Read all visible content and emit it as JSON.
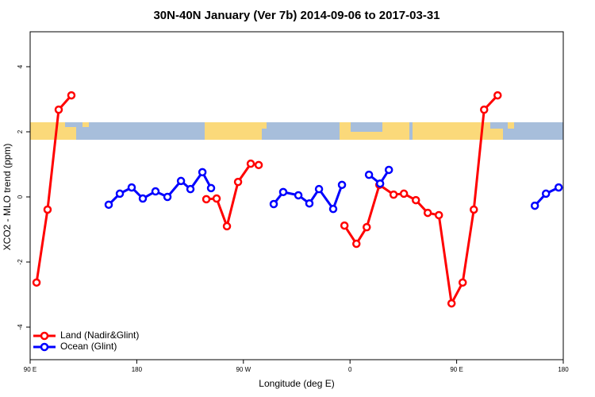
{
  "chart_data": {
    "type": "line",
    "title": "30N-40N January (Ver 7b)   2014-09-06 to 2017-03-31",
    "xlabel": "Longitude (deg E)",
    "ylabel": "XCO2 - MLO trend (ppm)",
    "xlim": [
      90,
      540
    ],
    "ylim": [
      -5,
      5
    ],
    "xticks": [
      {
        "value": 90,
        "label": "90 E"
      },
      {
        "value": 180,
        "label": "180"
      },
      {
        "value": 270,
        "label": "90 W"
      },
      {
        "value": 360,
        "label": "0"
      },
      {
        "value": 450,
        "label": "90 E"
      },
      {
        "value": 540,
        "label": "180"
      }
    ],
    "yticks": [
      -4,
      -2,
      0,
      2,
      4
    ],
    "legend": "lower left",
    "series": [
      {
        "name": "Land (Nadir&Glint)",
        "color": "#ff0000",
        "x": [
          95.4,
          104.7,
          114.1,
          124.8,
          null,
          238.7,
          247.4,
          256.1,
          265.5,
          276.2,
          282.9,
          null,
          355.3,
          365.4,
          374.1,
          384.8,
          396.8,
          405.5,
          415.6,
          425.6,
          435,
          445.7,
          455.1,
          464.5,
          473.2,
          484.6
        ],
        "values": [
          -2.63,
          -0.39,
          2.68,
          3.12,
          null,
          -0.07,
          -0.05,
          -0.9,
          0.46,
          1.02,
          0.98,
          null,
          -0.88,
          -1.44,
          -0.93,
          0.37,
          0.07,
          0.1,
          -0.1,
          -0.49,
          -0.56,
          -3.27,
          -2.63,
          -0.39,
          2.68,
          3.12
        ]
      },
      {
        "name": "Ocean (Glint)",
        "color": "#0000ff",
        "x": [
          156.3,
          165.7,
          175.7,
          185.1,
          195.8,
          205.9,
          217.3,
          225.3,
          235.4,
          242.7,
          null,
          295.6,
          303.6,
          316.4,
          325.7,
          333.8,
          345.8,
          353.2,
          null,
          376,
          385.4,
          392.8,
          null,
          516,
          525.4,
          536.1
        ],
        "values": [
          -0.24,
          0.1,
          0.29,
          -0.05,
          0.17,
          0,
          0.49,
          0.24,
          0.76,
          0.27,
          null,
          -0.22,
          0.15,
          0.05,
          -0.2,
          0.24,
          -0.37,
          0.37,
          null,
          0.68,
          0.41,
          0.83,
          null,
          -0.27,
          0.1,
          0.29
        ]
      }
    ]
  }
}
